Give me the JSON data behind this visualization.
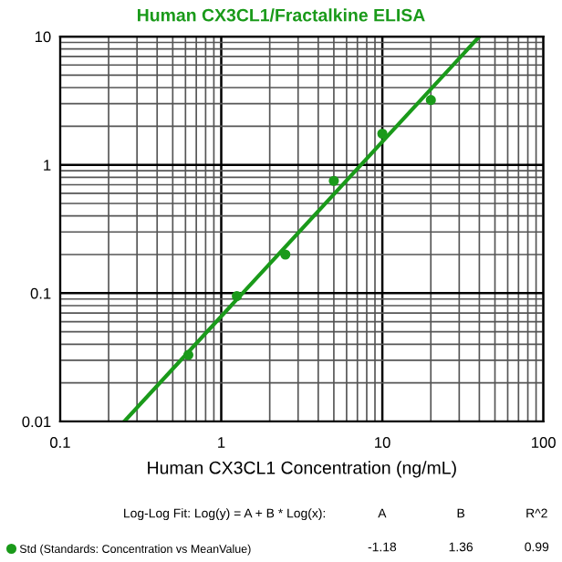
{
  "chart_data": {
    "type": "scatter",
    "title": "Human CX3CL1/Fractalkine ELISA",
    "xlabel": "Human CX3CL1 Concentration (ng/mL)",
    "log": "xy",
    "xlim": [
      0.1,
      100
    ],
    "ylim": [
      0.01,
      10
    ],
    "xticks": [
      0.1,
      1,
      10,
      100
    ],
    "yticks": [
      0.01,
      0.1,
      1,
      10
    ],
    "grid": true,
    "legend": "bottom",
    "series": [
      {
        "name": "Std (Standards: Concentration vs MeanValue)",
        "marker": "circle",
        "color": "#1a9a1a",
        "x": [
          0.625,
          1.25,
          2.5,
          5,
          10,
          20
        ],
        "values": [
          0.033,
          0.095,
          0.2,
          0.75,
          1.75,
          3.2
        ]
      },
      {
        "type": "line",
        "color": "#1a9a1a",
        "x": [
          0.25,
          40
        ],
        "values": [
          0.01,
          10
        ]
      }
    ],
    "annotations": [
      "Log-Log Fit: Log(y) = A + B * Log(x):",
      "A",
      "B",
      "R^2",
      "-1.18",
      "1.36",
      "0.99"
    ]
  }
}
